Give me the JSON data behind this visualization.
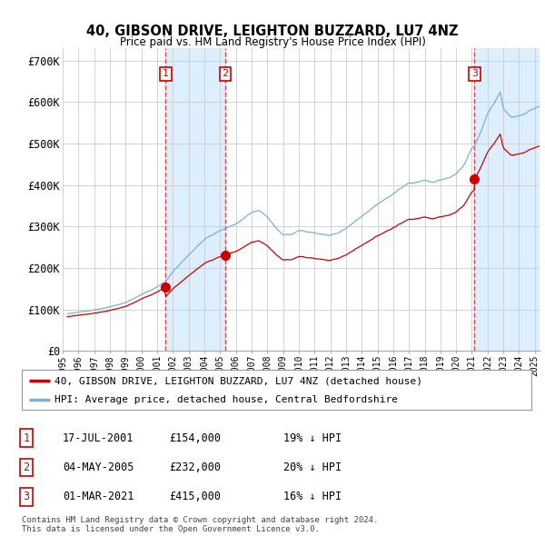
{
  "title": "40, GIBSON DRIVE, LEIGHTON BUZZARD, LU7 4NZ",
  "subtitle": "Price paid vs. HM Land Registry's House Price Index (HPI)",
  "ylabel_ticks": [
    "£0",
    "£100K",
    "£200K",
    "£300K",
    "£400K",
    "£500K",
    "£600K",
    "£700K"
  ],
  "ytick_vals": [
    0,
    100000,
    200000,
    300000,
    400000,
    500000,
    600000,
    700000
  ],
  "ylim": [
    0,
    730000
  ],
  "xlim_start": 1995.3,
  "xlim_end": 2025.3,
  "hpi_color": "#7ab0d4",
  "price_color": "#cc0000",
  "vline_color": "#dd4444",
  "shade_color": "#ddeeff",
  "transactions": [
    {
      "year": 2001.54,
      "price": 154000,
      "label": "1"
    },
    {
      "year": 2005.34,
      "price": 232000,
      "label": "2"
    },
    {
      "year": 2021.17,
      "price": 415000,
      "label": "3"
    }
  ],
  "legend_label_red": "40, GIBSON DRIVE, LEIGHTON BUZZARD, LU7 4NZ (detached house)",
  "legend_label_blue": "HPI: Average price, detached house, Central Bedfordshire",
  "table_rows": [
    {
      "num": "1",
      "date": "17-JUL-2001",
      "price": "£154,000",
      "hpi": "19% ↓ HPI"
    },
    {
      "num": "2",
      "date": "04-MAY-2005",
      "price": "£232,000",
      "hpi": "20% ↓ HPI"
    },
    {
      "num": "3",
      "date": "01-MAR-2021",
      "price": "£415,000",
      "hpi": "16% ↓ HPI"
    }
  ],
  "footer": "Contains HM Land Registry data © Crown copyright and database right 2024.\nThis data is licensed under the Open Government Licence v3.0.",
  "background_color": "#ffffff",
  "grid_color": "#cccccc"
}
